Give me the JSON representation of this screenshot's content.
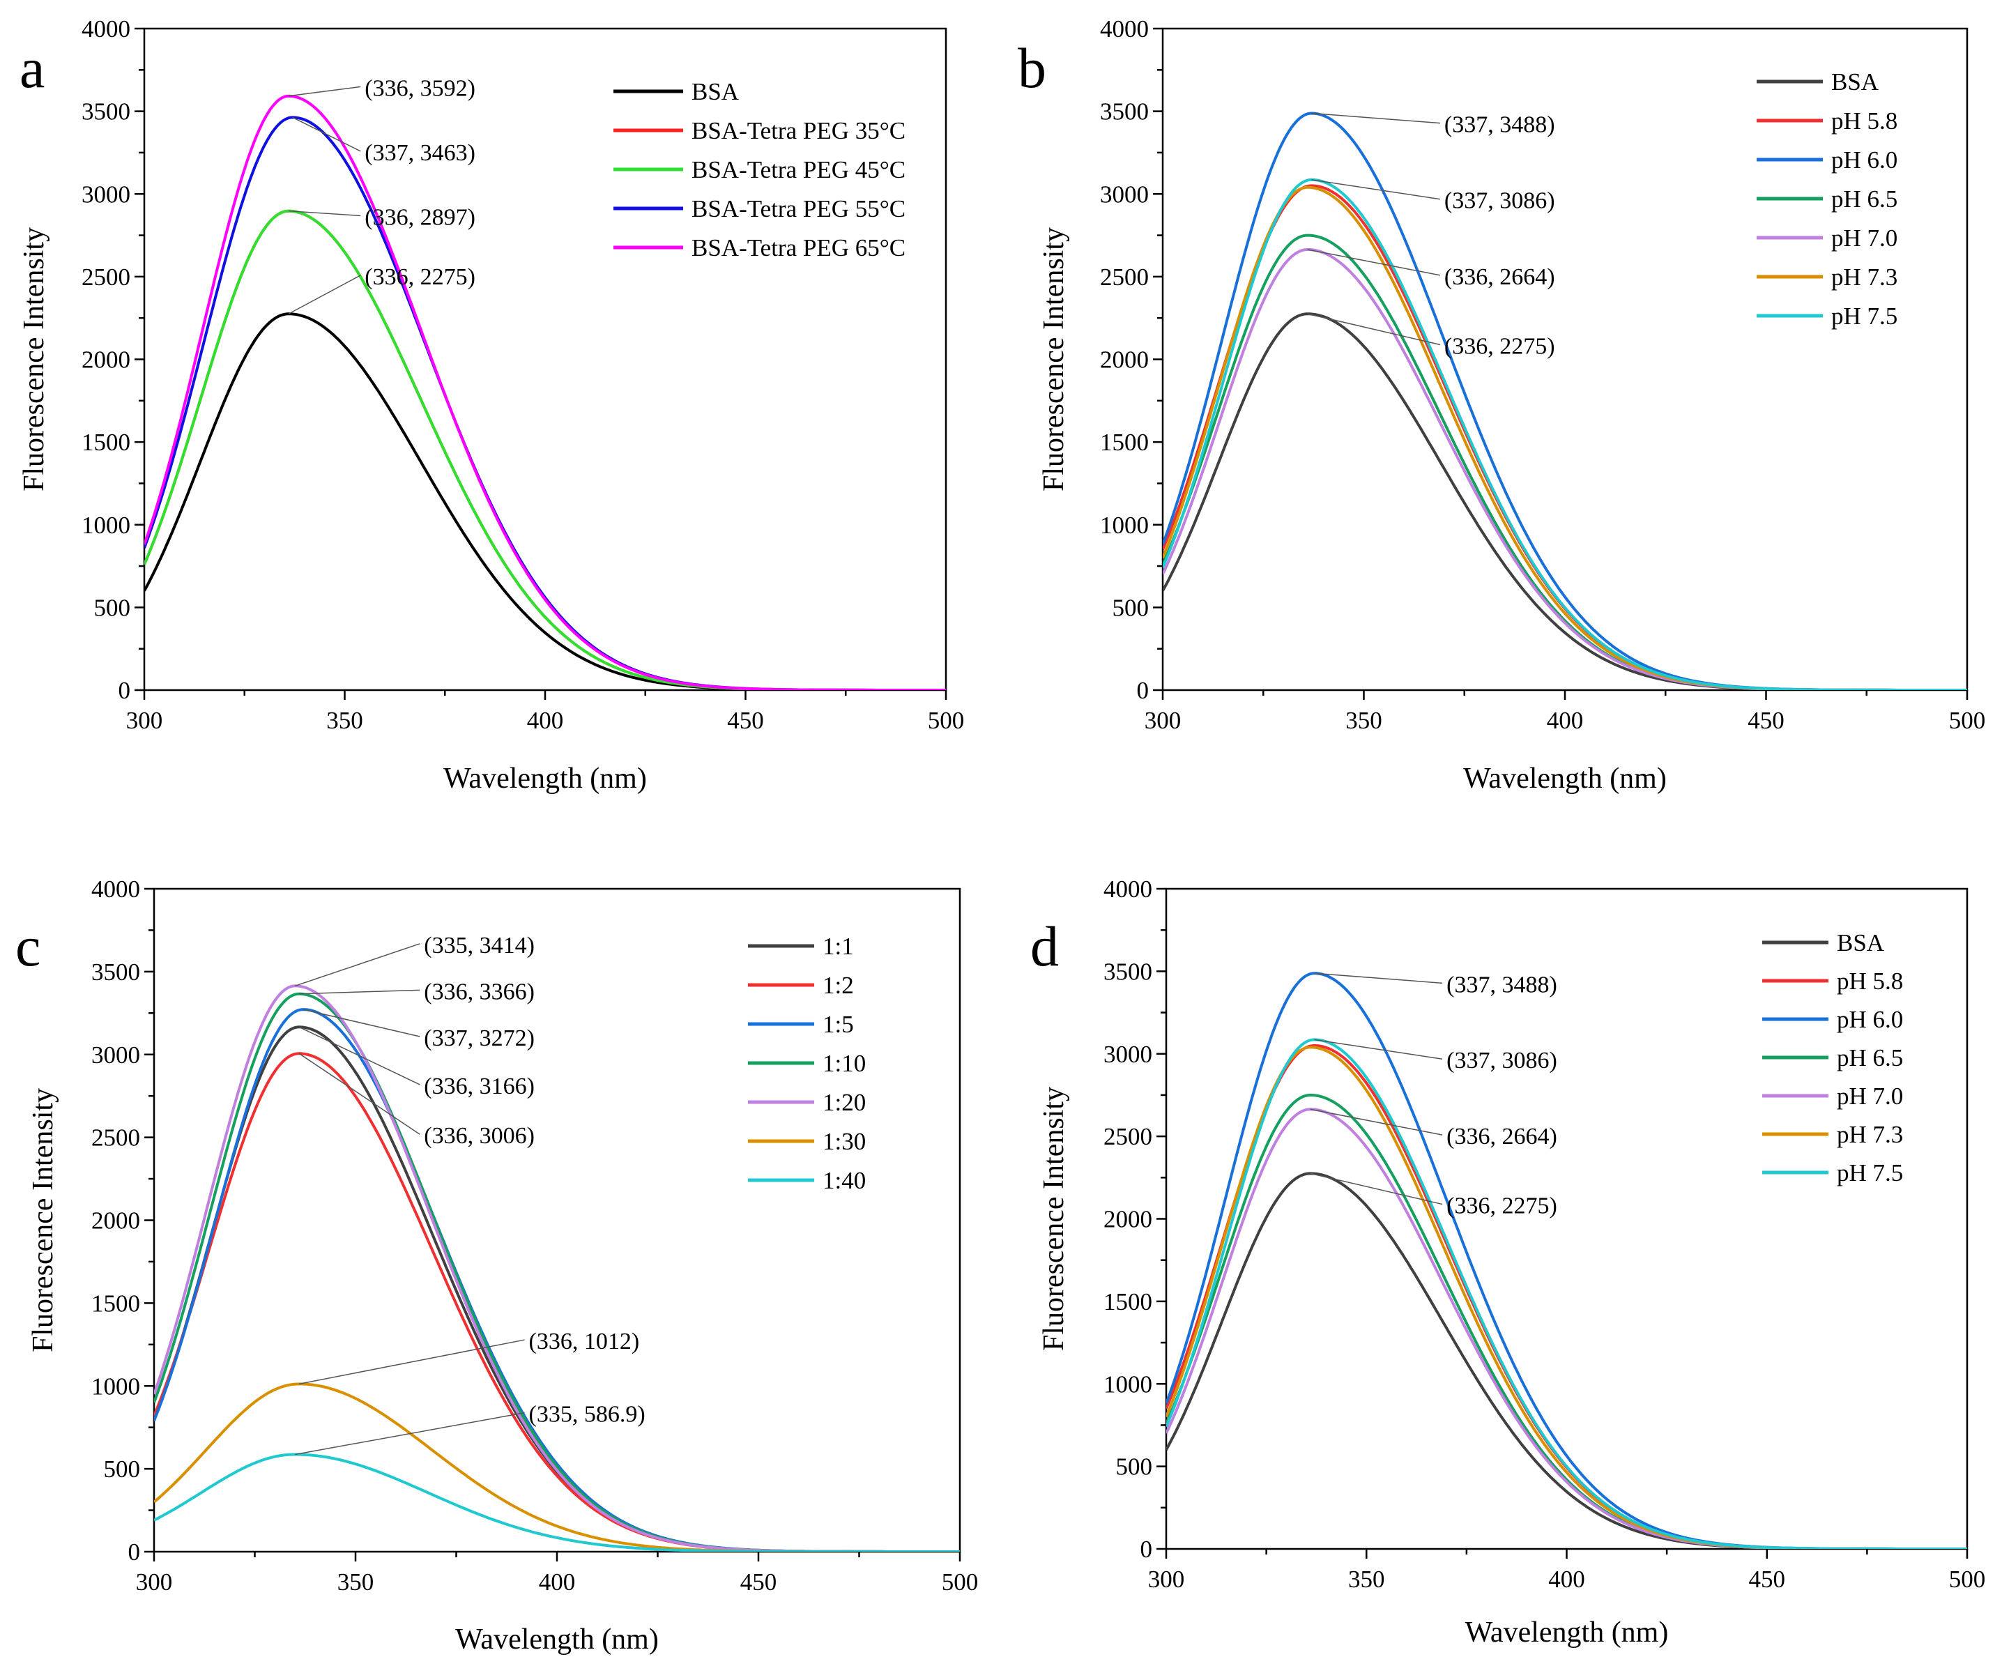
{
  "chart_data": [
    {
      "panel": "a",
      "type": "line",
      "xlabel": "Wavelength (nm)",
      "ylabel": "Fluorescence Intensity",
      "xlim": [
        300,
        500
      ],
      "ylim": [
        0,
        4000
      ],
      "xticks": [
        300,
        350,
        400,
        450,
        500
      ],
      "yticks": [
        0,
        500,
        1000,
        1500,
        2000,
        2500,
        3000,
        3500,
        4000
      ],
      "legend_position": "top-right",
      "series": [
        {
          "name": "BSA",
          "color": "#000000",
          "peak_x": 336,
          "peak_y": 2275,
          "start_y": 600
        },
        {
          "name": "BSA-Tetra PEG 35°C",
          "color": "#ff2020",
          "peak_x": 336,
          "peak_y": 2897,
          "start_y": 760
        },
        {
          "name": "BSA-Tetra PEG 45°C",
          "color": "#30e030",
          "peak_x": 336,
          "peak_y": 2897,
          "start_y": 760
        },
        {
          "name": "BSA-Tetra PEG 55°C",
          "color": "#1010e0",
          "peak_x": 337,
          "peak_y": 3463,
          "start_y": 860
        },
        {
          "name": "BSA-Tetra PEG 65°C",
          "color": "#ff00ff",
          "peak_x": 336,
          "peak_y": 3592,
          "start_y": 880
        }
      ],
      "annotations": [
        {
          "text": "(336, 3592)",
          "x": 336,
          "y": 3592,
          "label_x": 355,
          "label_y": 3640
        },
        {
          "text": "(337, 3463)",
          "x": 337,
          "y": 3463,
          "label_x": 355,
          "label_y": 3250
        },
        {
          "text": "(336, 2897)",
          "x": 336,
          "y": 2897,
          "label_x": 355,
          "label_y": 2860
        },
        {
          "text": "(336, 2275)",
          "x": 336,
          "y": 2275,
          "label_x": 355,
          "label_y": 2500
        }
      ]
    },
    {
      "panel": "b",
      "type": "line",
      "xlabel": "Wavelength (nm)",
      "ylabel": "Fluorescence Intensity",
      "xlim": [
        300,
        500
      ],
      "ylim": [
        0,
        4000
      ],
      "xticks": [
        300,
        350,
        400,
        450,
        500
      ],
      "yticks": [
        0,
        500,
        1000,
        1500,
        2000,
        2500,
        3000,
        3500,
        4000
      ],
      "legend_position": "top-right",
      "series": [
        {
          "name": "BSA",
          "color": "#404040",
          "peak_x": 336,
          "peak_y": 2275,
          "start_y": 600
        },
        {
          "name": "pH 5.8",
          "color": "#f03030",
          "peak_x": 337,
          "peak_y": 3050,
          "start_y": 850
        },
        {
          "name": "pH 6.0",
          "color": "#1870d8",
          "peak_x": 337,
          "peak_y": 3488,
          "start_y": 880
        },
        {
          "name": "pH 6.5",
          "color": "#15a060",
          "peak_x": 336,
          "peak_y": 2750,
          "start_y": 760
        },
        {
          "name": "pH 7.0",
          "color": "#c080e0",
          "peak_x": 336,
          "peak_y": 2664,
          "start_y": 700
        },
        {
          "name": "pH 7.3",
          "color": "#d89000",
          "peak_x": 336,
          "peak_y": 3040,
          "start_y": 800
        },
        {
          "name": "pH 7.5",
          "color": "#20c8d0",
          "peak_x": 337,
          "peak_y": 3086,
          "start_y": 740
        }
      ],
      "annotations": [
        {
          "text": "(337, 3488)",
          "x": 337,
          "y": 3488,
          "label_x": 370,
          "label_y": 3420
        },
        {
          "text": "(337, 3086)",
          "x": 337,
          "y": 3086,
          "label_x": 370,
          "label_y": 2960
        },
        {
          "text": "(336, 2664)",
          "x": 336,
          "y": 2664,
          "label_x": 370,
          "label_y": 2500
        },
        {
          "text": "(336, 2275)",
          "x": 336,
          "y": 2275,
          "label_x": 370,
          "label_y": 2080
        }
      ]
    },
    {
      "panel": "c",
      "type": "line",
      "xlabel": "Wavelength (nm)",
      "ylabel": "Fluorescence Intensity",
      "xlim": [
        300,
        500
      ],
      "ylim": [
        0,
        4000
      ],
      "xticks": [
        300,
        350,
        400,
        450,
        500
      ],
      "yticks": [
        0,
        500,
        1000,
        1500,
        2000,
        2500,
        3000,
        3500,
        4000
      ],
      "legend_position": "top-right",
      "series": [
        {
          "name": "1:1",
          "color": "#404040",
          "peak_x": 336,
          "peak_y": 3166,
          "start_y": 800
        },
        {
          "name": "1:2",
          "color": "#f03030",
          "peak_x": 336,
          "peak_y": 3006,
          "start_y": 820
        },
        {
          "name": "1:5",
          "color": "#1870d8",
          "peak_x": 337,
          "peak_y": 3272,
          "start_y": 790
        },
        {
          "name": "1:10",
          "color": "#15a060",
          "peak_x": 336,
          "peak_y": 3366,
          "start_y": 900
        },
        {
          "name": "1:20",
          "color": "#c080e0",
          "peak_x": 335,
          "peak_y": 3414,
          "start_y": 950
        },
        {
          "name": "1:30",
          "color": "#d89000",
          "peak_x": 336,
          "peak_y": 1012,
          "start_y": 300
        },
        {
          "name": "1:40",
          "color": "#20c8d0",
          "peak_x": 335,
          "peak_y": 586.9,
          "start_y": 190
        }
      ],
      "annotations": [
        {
          "text": "(335, 3414)",
          "x": 335,
          "y": 3414,
          "label_x": 367,
          "label_y": 3660
        },
        {
          "text": "(336, 3366)",
          "x": 336,
          "y": 3366,
          "label_x": 367,
          "label_y": 3380
        },
        {
          "text": "(337, 3272)",
          "x": 337,
          "y": 3272,
          "label_x": 367,
          "label_y": 3100
        },
        {
          "text": "(336, 3166)",
          "x": 336,
          "y": 3166,
          "label_x": 367,
          "label_y": 2810
        },
        {
          "text": "(336, 3006)",
          "x": 336,
          "y": 3006,
          "label_x": 367,
          "label_y": 2510
        },
        {
          "text": "(336, 1012)",
          "x": 336,
          "y": 1012,
          "label_x": 393,
          "label_y": 1270
        },
        {
          "text": "(335, 586.9)",
          "x": 335,
          "y": 586.9,
          "label_x": 393,
          "label_y": 830
        }
      ]
    },
    {
      "panel": "d",
      "type": "line",
      "xlabel": "Wavelength (nm)",
      "ylabel": "Fluorescence Intensity",
      "xlim": [
        300,
        500
      ],
      "ylim": [
        0,
        4000
      ],
      "xticks": [
        300,
        350,
        400,
        450,
        500
      ],
      "yticks": [
        0,
        500,
        1000,
        1500,
        2000,
        2500,
        3000,
        3500,
        4000
      ],
      "legend_position": "top-right",
      "series": [
        {
          "name": "BSA",
          "color": "#404040",
          "peak_x": 336,
          "peak_y": 2275,
          "start_y": 600
        },
        {
          "name": "pH 5.8",
          "color": "#f03030",
          "peak_x": 337,
          "peak_y": 3050,
          "start_y": 850
        },
        {
          "name": "pH 6.0",
          "color": "#1870d8",
          "peak_x": 337,
          "peak_y": 3488,
          "start_y": 880
        },
        {
          "name": "pH 6.5",
          "color": "#15a060",
          "peak_x": 336,
          "peak_y": 2750,
          "start_y": 760
        },
        {
          "name": "pH 7.0",
          "color": "#c080e0",
          "peak_x": 336,
          "peak_y": 2664,
          "start_y": 700
        },
        {
          "name": "pH 7.3",
          "color": "#d89000",
          "peak_x": 336,
          "peak_y": 3040,
          "start_y": 800
        },
        {
          "name": "pH 7.5",
          "color": "#20c8d0",
          "peak_x": 337,
          "peak_y": 3086,
          "start_y": 740
        }
      ],
      "annotations": [
        {
          "text": "(337, 3488)",
          "x": 337,
          "y": 3488,
          "label_x": 370,
          "label_y": 3420
        },
        {
          "text": "(337, 3086)",
          "x": 337,
          "y": 3086,
          "label_x": 370,
          "label_y": 2960
        },
        {
          "text": "(336, 2664)",
          "x": 336,
          "y": 2664,
          "label_x": 370,
          "label_y": 2500
        },
        {
          "text": "(336, 2275)",
          "x": 336,
          "y": 2275,
          "label_x": 370,
          "label_y": 2080
        }
      ]
    }
  ]
}
